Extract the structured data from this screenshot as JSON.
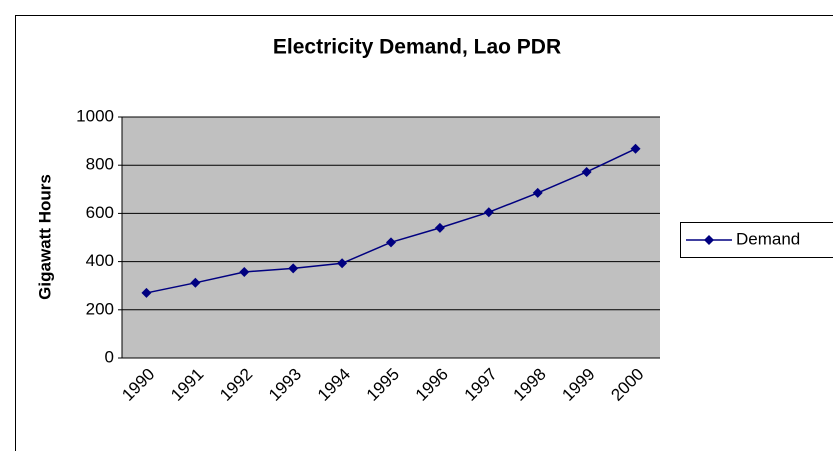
{
  "chart_data": {
    "type": "line",
    "title": "Electricity Demand, Lao PDR",
    "y_label": "Gigawatt Hours",
    "categories": [
      "1990",
      "1991",
      "1992",
      "1993",
      "1994",
      "1995",
      "1996",
      "1997",
      "1998",
      "1999",
      "2000"
    ],
    "series": [
      {
        "name": "Demand",
        "color": "#000080",
        "values": [
          270,
          312,
          357,
          372,
          393,
          480,
          540,
          605,
          685,
          772,
          868
        ]
      }
    ],
    "ylim": [
      0,
      1000
    ],
    "yticks": [
      0,
      200,
      400,
      600,
      800,
      1000
    ],
    "grid": true,
    "legend": "right"
  }
}
